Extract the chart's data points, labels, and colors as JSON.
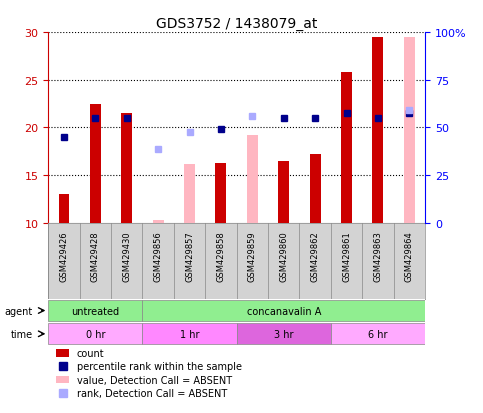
{
  "title": "GDS3752 / 1438079_at",
  "samples": [
    "GSM429426",
    "GSM429428",
    "GSM429430",
    "GSM429856",
    "GSM429857",
    "GSM429858",
    "GSM429859",
    "GSM429860",
    "GSM429862",
    "GSM429861",
    "GSM429863",
    "GSM429864"
  ],
  "count_red": [
    13,
    22.5,
    21.5,
    null,
    null,
    16.3,
    null,
    16.5,
    17.2,
    25.8,
    29.5,
    null
  ],
  "count_pink": [
    null,
    null,
    null,
    10.3,
    16.2,
    null,
    19.2,
    null,
    null,
    null,
    null,
    29.5
  ],
  "rank_blue": [
    19,
    21,
    21,
    null,
    null,
    19.8,
    null,
    21,
    21,
    21.5,
    21,
    21.5
  ],
  "rank_lightblue": [
    null,
    null,
    null,
    17.7,
    19.5,
    null,
    21.2,
    null,
    null,
    null,
    null,
    21.8
  ],
  "ylim_left": [
    10,
    30
  ],
  "ylim_right": [
    0,
    100
  ],
  "yticks_left": [
    10,
    15,
    20,
    25,
    30
  ],
  "yticks_right": [
    0,
    25,
    50,
    75,
    100
  ],
  "agent_labels": [
    {
      "text": "untreated",
      "start": 0,
      "end": 3,
      "color": "#90EE90"
    },
    {
      "text": "concanavalin A",
      "start": 3,
      "end": 12,
      "color": "#90EE90"
    }
  ],
  "time_labels": [
    {
      "text": "0 hr",
      "start": 0,
      "end": 3,
      "color": "#FF80FF"
    },
    {
      "text": "1 hr",
      "start": 3,
      "end": 6,
      "color": "#FF80FF"
    },
    {
      "text": "3 hr",
      "start": 6,
      "end": 9,
      "color": "#CC66CC"
    },
    {
      "text": "6 hr",
      "start": 9,
      "end": 12,
      "color": "#FF80FF"
    }
  ],
  "bar_width": 0.35,
  "bar_bottom": 10,
  "color_red": "#CC0000",
  "color_pink": "#FFB6C1",
  "color_blue": "#00008B",
  "color_lightblue": "#AAAAFF",
  "legend_items": [
    {
      "label": "count",
      "color": "#CC0000",
      "type": "bar"
    },
    {
      "label": "percentile rank within the sample",
      "color": "#00008B",
      "type": "square"
    },
    {
      "label": "value, Detection Call = ABSENT",
      "color": "#FFB6C1",
      "type": "bar"
    },
    {
      "label": "rank, Detection Call = ABSENT",
      "color": "#AAAAFF",
      "type": "square"
    }
  ],
  "grid_color": "#000000",
  "background_color": "#FFFFFF",
  "left_axis_color": "#CC0000",
  "right_axis_color": "#0000FF"
}
